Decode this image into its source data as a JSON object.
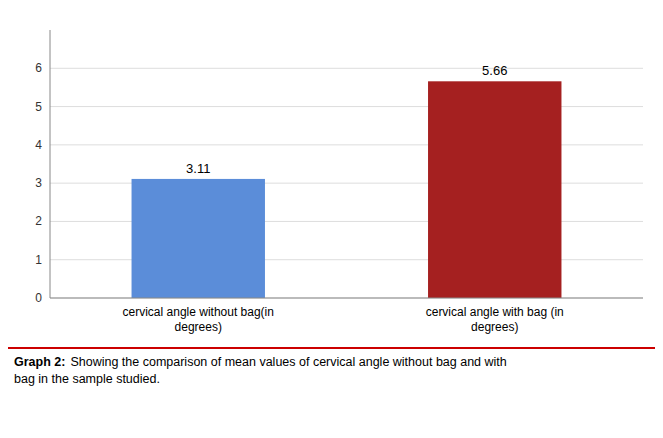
{
  "chart_data": {
    "type": "bar",
    "title": "Graph 2:",
    "subtitle": "Showing the comparison of mean values of cervical angle without bag and with\nbag in the sample studied.",
    "categories": [
      "cervical angle without bag(in\ndegrees)",
      "cervical angle with bag (in\ndegrees)"
    ],
    "values": [
      3.11,
      5.66
    ],
    "colors": [
      "#5B8DD9",
      "#A52020"
    ],
    "ylim": [
      0,
      7
    ],
    "yticks": [
      0,
      1,
      2,
      3,
      4,
      5,
      6
    ],
    "grid": true,
    "data_labels": true
  }
}
